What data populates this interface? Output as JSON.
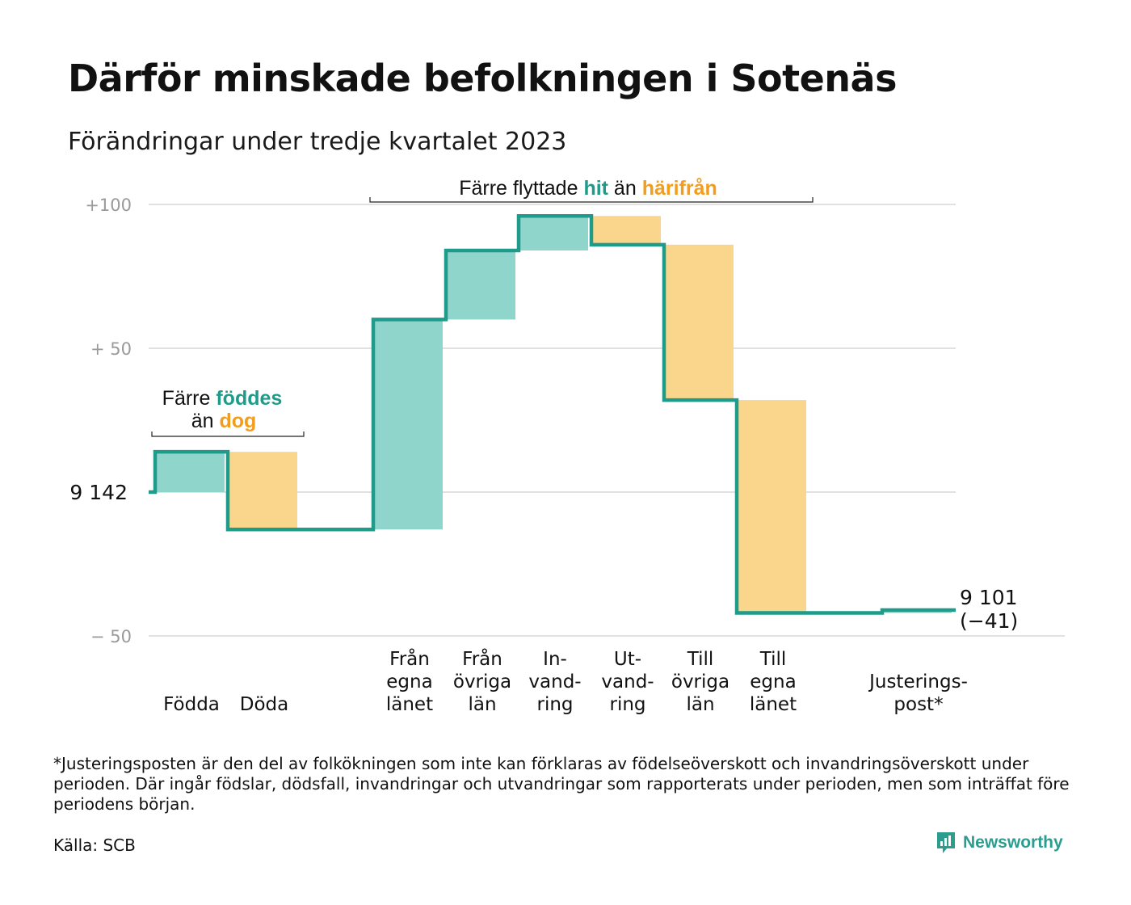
{
  "title": "Därför minskade befolkningen i Sotenäs",
  "subtitle": "Förändringar under tredje kvartalet 2023",
  "chart_data": {
    "type": "waterfall",
    "start_value": 9142,
    "start_label": "9  142",
    "end_value": 9101,
    "end_label": "9 101",
    "end_change_label": "(−41)",
    "ylim": [
      -50,
      100
    ],
    "yticks": [
      {
        "value": 100,
        "label": "+100"
      },
      {
        "value": 50,
        "label": "+  50"
      },
      {
        "value": -50,
        "label": "−  50"
      }
    ],
    "grid": true,
    "steps": [
      {
        "label_lines": [
          "Födda"
        ],
        "value": 14,
        "kind": "in"
      },
      {
        "label_lines": [
          "Döda"
        ],
        "value": -27,
        "kind": "out"
      },
      {
        "label_lines": [],
        "value": 0,
        "kind": "none"
      },
      {
        "label_lines": [
          "Från",
          "egna",
          "länet"
        ],
        "value": 73,
        "kind": "in"
      },
      {
        "label_lines": [
          "Från",
          "övriga",
          "län"
        ],
        "value": 24,
        "kind": "in"
      },
      {
        "label_lines": [
          "In-",
          "vand-",
          "ring"
        ],
        "value": 12,
        "kind": "in"
      },
      {
        "label_lines": [
          "Ut-",
          "vand-",
          "ring"
        ],
        "value": -10,
        "kind": "out"
      },
      {
        "label_lines": [
          "Till",
          "övriga",
          "län"
        ],
        "value": -54,
        "kind": "out"
      },
      {
        "label_lines": [
          "Till",
          "egna",
          "länet"
        ],
        "value": -74,
        "kind": "out"
      },
      {
        "label_lines": [],
        "value": 0,
        "kind": "none"
      },
      {
        "label_lines": [
          "Justerings-",
          "post*"
        ],
        "value": 1,
        "kind": "in"
      }
    ],
    "annotations": [
      {
        "parts": [
          "Färre ",
          "föddes"
        ],
        "line2": [
          "än ",
          "dog"
        ]
      },
      {
        "parts": [
          "Färre flyttade ",
          "hit",
          " än ",
          "härifrån"
        ]
      }
    ],
    "colors": {
      "in_fill": "#8fd5cc",
      "out_fill": "#fad68c",
      "line": "#1e9b8a",
      "in_text": "#1e9b8a",
      "out_text": "#f29d1d",
      "grid": "#e1e1e1"
    }
  },
  "footnote": "*Justeringsposten är den del av folkökningen som inte kan förklaras av födelseöverskott och invandringsöverskott under perioden. Där ingår födslar, dödsfall, invandringar och utvandringar som rapporterats under perioden, men som inträffat före periodens början.",
  "source": "Källa: SCB",
  "brand": {
    "name": "Newsworthy",
    "icon": "newsworthy-logo-icon"
  }
}
